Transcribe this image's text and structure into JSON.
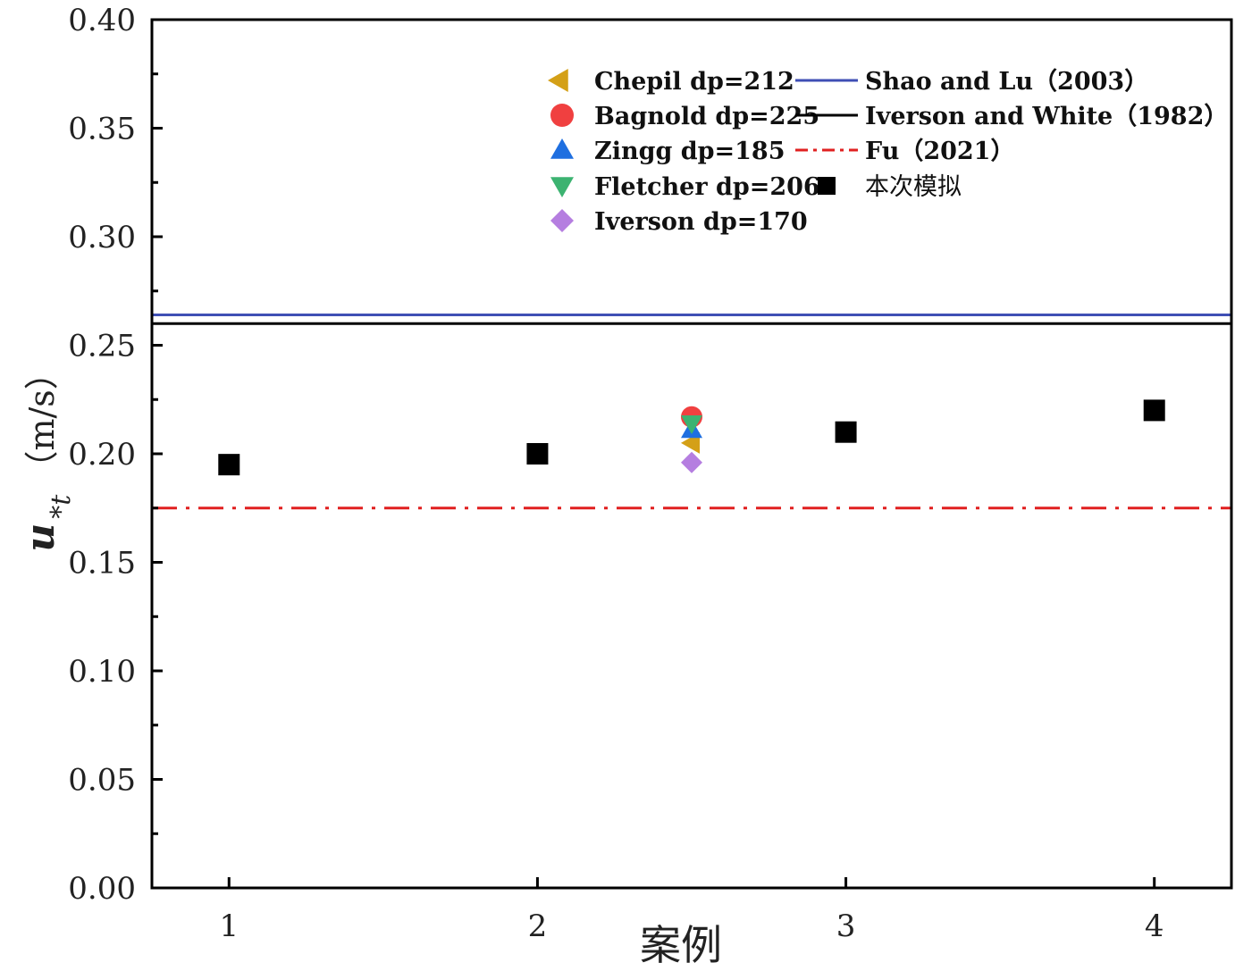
{
  "chart_data": {
    "type": "scatter",
    "xlabel": "案例",
    "ylabel": {
      "base": "u",
      "subscript": "*t",
      "unit": "（m/s）"
    },
    "xlim": [
      0.75,
      4.25
    ],
    "ylim": [
      0.0,
      0.4
    ],
    "x_ticks": [
      {
        "value": 1,
        "label": "1"
      },
      {
        "value": 2,
        "label": "2"
      },
      {
        "value": 3,
        "label": "3"
      },
      {
        "value": 4,
        "label": "4"
      }
    ],
    "y_ticks": [
      {
        "value": 0.0,
        "label": "0.00"
      },
      {
        "value": 0.05,
        "label": "0.05"
      },
      {
        "value": 0.1,
        "label": "0.10"
      },
      {
        "value": 0.15,
        "label": "0.15"
      },
      {
        "value": 0.2,
        "label": "0.20"
      },
      {
        "value": 0.25,
        "label": "0.25"
      },
      {
        "value": 0.3,
        "label": "0.30"
      },
      {
        "value": 0.35,
        "label": "0.35"
      },
      {
        "value": 0.4,
        "label": "0.40"
      }
    ],
    "y_minor_step": 0.025,
    "grid": false,
    "legend_position": "top-right",
    "series": [
      {
        "name": "Chepil    dp=212",
        "kind": "point",
        "marker": "triangle-left",
        "color": "#D4A017",
        "points": [
          {
            "x": 2.5,
            "y": 0.205
          }
        ]
      },
      {
        "name": "Bagnold dp=225",
        "kind": "point",
        "marker": "circle",
        "color": "#F04040",
        "points": [
          {
            "x": 2.5,
            "y": 0.217
          }
        ]
      },
      {
        "name": "Zingg     dp=185",
        "kind": "point",
        "marker": "triangle-up",
        "color": "#1F6FE0",
        "points": [
          {
            "x": 2.5,
            "y": 0.211
          }
        ]
      },
      {
        "name": "Fletcher dp=206",
        "kind": "point",
        "marker": "triangle-down",
        "color": "#3CB371",
        "points": [
          {
            "x": 2.5,
            "y": 0.214
          }
        ]
      },
      {
        "name": " Iverson dp=170",
        "kind": "point",
        "marker": "diamond",
        "color": "#B57EE0",
        "points": [
          {
            "x": 2.5,
            "y": 0.196
          }
        ]
      },
      {
        "name": "Shao and Lu（2003）",
        "kind": "hline",
        "style": "solid",
        "color": "#3F4FB5",
        "y": 0.264
      },
      {
        "name": "Iverson and White（1982）",
        "kind": "hline",
        "style": "solid",
        "color": "#000000",
        "y": 0.26
      },
      {
        "name": "Fu（2021）",
        "kind": "hline",
        "style": "dashdot",
        "color": "#E02020",
        "y": 0.175
      },
      {
        "name": "本次模拟",
        "kind": "point",
        "marker": "square",
        "color": "#000000",
        "points": [
          {
            "x": 1,
            "y": 0.195
          },
          {
            "x": 2,
            "y": 0.2
          },
          {
            "x": 3,
            "y": 0.21
          },
          {
            "x": 4,
            "y": 0.22
          }
        ]
      }
    ]
  }
}
